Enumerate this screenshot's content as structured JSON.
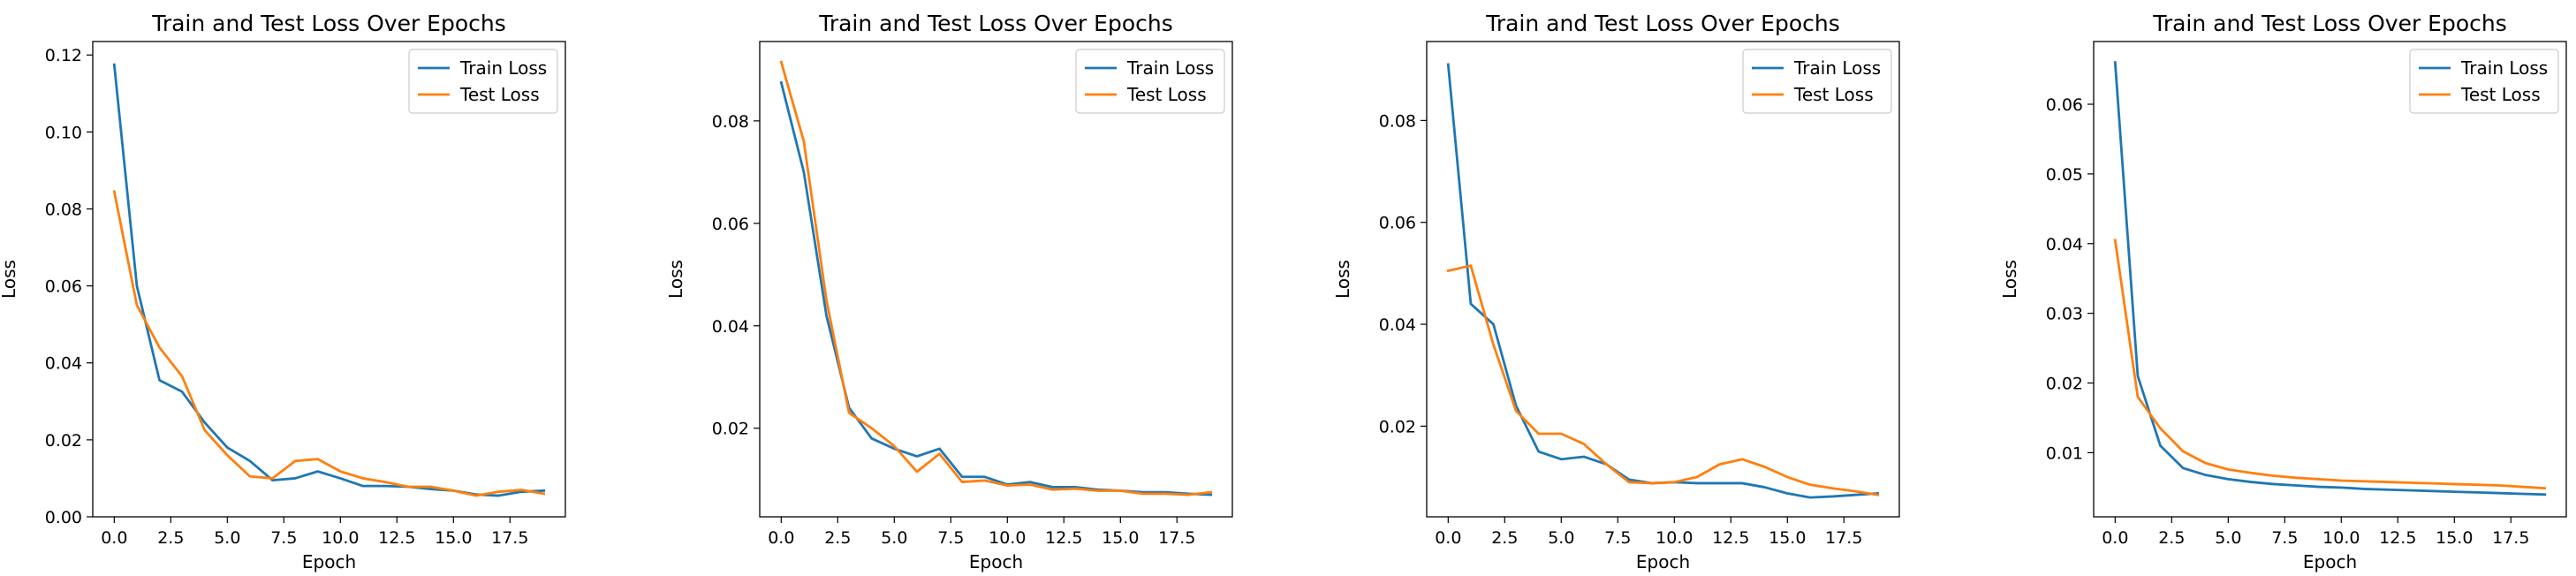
{
  "colors": {
    "train": "#1f77b4",
    "test": "#ff7f0e"
  },
  "chart_data": [
    {
      "type": "line",
      "title": "Train and Test Loss Over Epochs",
      "xlabel": "Epoch",
      "ylabel": "Loss",
      "xlim": [
        -0.95,
        19.95
      ],
      "ylim": [
        0.0,
        0.1235
      ],
      "xticks": [
        0.0,
        2.5,
        5.0,
        7.5,
        10.0,
        12.5,
        15.0,
        17.5
      ],
      "xtick_labels": [
        "0.0",
        "2.5",
        "5.0",
        "7.5",
        "10.0",
        "12.5",
        "15.0",
        "17.5"
      ],
      "yticks": [
        0.0,
        0.02,
        0.04,
        0.06,
        0.08,
        0.1,
        0.12
      ],
      "ytick_labels": [
        "0.00",
        "0.02",
        "0.04",
        "0.06",
        "0.08",
        "0.10",
        "0.12"
      ],
      "legend_position": "top-right",
      "x": [
        0,
        1,
        2,
        3,
        4,
        5,
        6,
        7,
        8,
        9,
        10,
        11,
        12,
        13,
        14,
        15,
        16,
        17,
        18,
        19
      ],
      "series": [
        {
          "name": "Train Loss",
          "values": [
            0.1175,
            0.06,
            0.0355,
            0.0325,
            0.0245,
            0.018,
            0.0145,
            0.0095,
            0.01,
            0.0118,
            0.01,
            0.008,
            0.008,
            0.0078,
            0.0072,
            0.0068,
            0.0058,
            0.0055,
            0.0065,
            0.0068
          ]
        },
        {
          "name": "Test Loss",
          "values": [
            0.0845,
            0.055,
            0.044,
            0.0365,
            0.0225,
            0.016,
            0.0105,
            0.01,
            0.0145,
            0.015,
            0.0118,
            0.01,
            0.009,
            0.0078,
            0.0078,
            0.0068,
            0.0055,
            0.0065,
            0.007,
            0.006
          ]
        }
      ]
    },
    {
      "type": "line",
      "title": "Train and Test Loss Over Epochs",
      "xlabel": "Epoch",
      "ylabel": "Loss",
      "xlim": [
        -0.95,
        19.95
      ],
      "ylim": [
        0.0027,
        0.0955
      ],
      "xticks": [
        0.0,
        2.5,
        5.0,
        7.5,
        10.0,
        12.5,
        15.0,
        17.5
      ],
      "xtick_labels": [
        "0.0",
        "2.5",
        "5.0",
        "7.5",
        "10.0",
        "12.5",
        "15.0",
        "17.5"
      ],
      "yticks": [
        0.02,
        0.04,
        0.06,
        0.08
      ],
      "ytick_labels": [
        "0.02",
        "0.04",
        "0.06",
        "0.08"
      ],
      "legend_position": "top-right",
      "x": [
        0,
        1,
        2,
        3,
        4,
        5,
        6,
        7,
        8,
        9,
        10,
        11,
        12,
        13,
        14,
        15,
        16,
        17,
        18,
        19
      ],
      "series": [
        {
          "name": "Train Loss",
          "values": [
            0.0875,
            0.07,
            0.042,
            0.024,
            0.018,
            0.016,
            0.0145,
            0.016,
            0.0105,
            0.0105,
            0.009,
            0.0095,
            0.0085,
            0.0085,
            0.008,
            0.0078,
            0.0075,
            0.0075,
            0.0072,
            0.007
          ]
        },
        {
          "name": "Test Loss",
          "values": [
            0.0915,
            0.076,
            0.045,
            0.023,
            0.02,
            0.0165,
            0.0115,
            0.015,
            0.0095,
            0.0098,
            0.0088,
            0.009,
            0.008,
            0.0082,
            0.0078,
            0.0078,
            0.0072,
            0.0072,
            0.007,
            0.0075
          ]
        }
      ]
    },
    {
      "type": "line",
      "title": "Train and Test Loss Over Epochs",
      "xlabel": "Epoch",
      "ylabel": "Loss",
      "xlim": [
        -0.95,
        19.95
      ],
      "ylim": [
        0.0022,
        0.0955
      ],
      "xticks": [
        0.0,
        2.5,
        5.0,
        7.5,
        10.0,
        12.5,
        15.0,
        17.5
      ],
      "xtick_labels": [
        "0.0",
        "2.5",
        "5.0",
        "7.5",
        "10.0",
        "12.5",
        "15.0",
        "17.5"
      ],
      "yticks": [
        0.02,
        0.04,
        0.06,
        0.08
      ],
      "ytick_labels": [
        "0.02",
        "0.04",
        "0.06",
        "0.08"
      ],
      "legend_position": "top-right",
      "x": [
        0,
        1,
        2,
        3,
        4,
        5,
        6,
        7,
        8,
        9,
        10,
        11,
        12,
        13,
        14,
        15,
        16,
        17,
        18,
        19
      ],
      "series": [
        {
          "name": "Train Loss",
          "values": [
            0.091,
            0.044,
            0.04,
            0.024,
            0.015,
            0.0135,
            0.014,
            0.0125,
            0.0095,
            0.0088,
            0.009,
            0.0088,
            0.0088,
            0.0088,
            0.008,
            0.0068,
            0.006,
            0.0062,
            0.0065,
            0.0068
          ]
        },
        {
          "name": "Test Loss",
          "values": [
            0.0505,
            0.0515,
            0.036,
            0.023,
            0.0185,
            0.0185,
            0.0165,
            0.0125,
            0.009,
            0.0088,
            0.009,
            0.01,
            0.0125,
            0.0135,
            0.012,
            0.01,
            0.0085,
            0.0078,
            0.0072,
            0.0065
          ]
        }
      ]
    },
    {
      "type": "line",
      "title": "Train and Test Loss Over Epochs",
      "xlabel": "Epoch",
      "ylabel": "Loss",
      "xlim": [
        -0.95,
        19.95
      ],
      "ylim": [
        0.0008,
        0.069
      ],
      "xticks": [
        0.0,
        2.5,
        5.0,
        7.5,
        10.0,
        12.5,
        15.0,
        17.5
      ],
      "xtick_labels": [
        "0.0",
        "2.5",
        "5.0",
        "7.5",
        "10.0",
        "12.5",
        "15.0",
        "17.5"
      ],
      "yticks": [
        0.01,
        0.02,
        0.03,
        0.04,
        0.05,
        0.06
      ],
      "ytick_labels": [
        "0.01",
        "0.02",
        "0.03",
        "0.04",
        "0.05",
        "0.06"
      ],
      "legend_position": "top-right",
      "x": [
        0,
        1,
        2,
        3,
        4,
        5,
        6,
        7,
        8,
        9,
        10,
        11,
        12,
        13,
        14,
        15,
        16,
        17,
        18,
        19
      ],
      "series": [
        {
          "name": "Train Loss",
          "values": [
            0.066,
            0.021,
            0.011,
            0.0078,
            0.0068,
            0.0062,
            0.0058,
            0.0055,
            0.0053,
            0.0051,
            0.005,
            0.0048,
            0.0047,
            0.0046,
            0.0045,
            0.0044,
            0.0043,
            0.0042,
            0.0041,
            0.004
          ]
        },
        {
          "name": "Test Loss",
          "values": [
            0.0405,
            0.018,
            0.0135,
            0.0102,
            0.0085,
            0.0076,
            0.0071,
            0.0067,
            0.0064,
            0.0062,
            0.006,
            0.0059,
            0.0058,
            0.0057,
            0.0056,
            0.0055,
            0.0054,
            0.0053,
            0.0051,
            0.0049
          ]
        }
      ]
    }
  ]
}
